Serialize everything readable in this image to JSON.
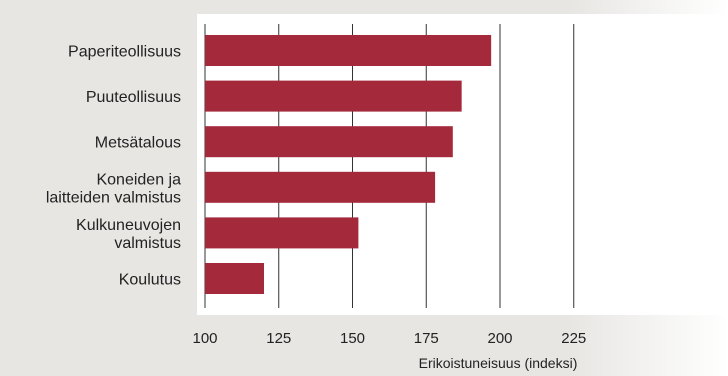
{
  "chart_data": {
    "type": "bar",
    "orientation": "horizontal",
    "categories": [
      [
        "Paperiteollisuus"
      ],
      [
        "Puuteollisuus"
      ],
      [
        "Metsätalous"
      ],
      [
        "Koneiden ja",
        "laitteiden valmistus"
      ],
      [
        "Kulkuneuvojen",
        "valmistus"
      ],
      [
        "Koulutus"
      ]
    ],
    "values": [
      197,
      187,
      184,
      178,
      152,
      120
    ],
    "xlim": [
      100,
      250
    ],
    "xticks": [
      "100",
      "125",
      "150",
      "175",
      "200",
      "225"
    ],
    "xlabel": "Erikoistuneisuus (indeksi)",
    "ylabel": "",
    "title": "",
    "grid": "vertical",
    "bar_color": "#a3293b",
    "background_color": "#e7e6e3"
  }
}
